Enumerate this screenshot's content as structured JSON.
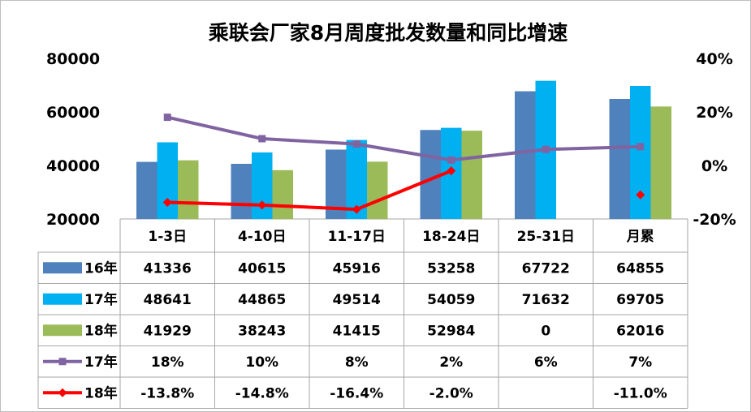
{
  "chart_data": {
    "type": "bar",
    "title": "乘联会厂家8月周度批发数量和同比增速",
    "categories": [
      "1-3日",
      "4-10日",
      "11-17日",
      "18-24日",
      "25-31日",
      "月累"
    ],
    "y_left": {
      "ticks": [
        "80000",
        "60000",
        "40000",
        "20000"
      ],
      "ylim": [
        20000,
        80000
      ]
    },
    "y_right": {
      "ticks": [
        "40%",
        "20%",
        "0%",
        "-20%"
      ],
      "ylim": [
        -20,
        40
      ]
    },
    "series": [
      {
        "name": "16年",
        "kind": "bar",
        "color": "#4F81BD",
        "values": [
          41336,
          40615,
          45916,
          53258,
          67722,
          64855
        ],
        "labels": [
          "41336",
          "40615",
          "45916",
          "53258",
          "67722",
          "64855"
        ]
      },
      {
        "name": "17年",
        "kind": "bar",
        "color": "#00B0F0",
        "values": [
          48641,
          44865,
          49514,
          54059,
          71632,
          69705
        ],
        "labels": [
          "48641",
          "44865",
          "49514",
          "54059",
          "71632",
          "69705"
        ]
      },
      {
        "name": "18年",
        "kind": "bar",
        "color": "#9BBB59",
        "values": [
          41929,
          38243,
          41415,
          52984,
          0,
          62016
        ],
        "labels": [
          "41929",
          "38243",
          "41415",
          "52984",
          "0",
          "62016"
        ]
      },
      {
        "name": "17年",
        "kind": "line",
        "axis": "right",
        "color": "#8064A2",
        "marker": "square",
        "values": [
          18,
          10,
          8,
          2,
          6,
          7
        ],
        "labels": [
          "18%",
          "10%",
          "8%",
          "2%",
          "6%",
          "7%"
        ]
      },
      {
        "name": "18年",
        "kind": "line",
        "axis": "right",
        "color": "#FF0000",
        "marker": "diamond",
        "values": [
          -13.8,
          -14.8,
          -16.4,
          -2.0,
          null,
          -11.0
        ],
        "connected_points": 4,
        "labels": [
          "-13.8%",
          "-14.8%",
          "-16.4%",
          "-2.0%",
          "",
          "-11.0%"
        ]
      }
    ]
  }
}
